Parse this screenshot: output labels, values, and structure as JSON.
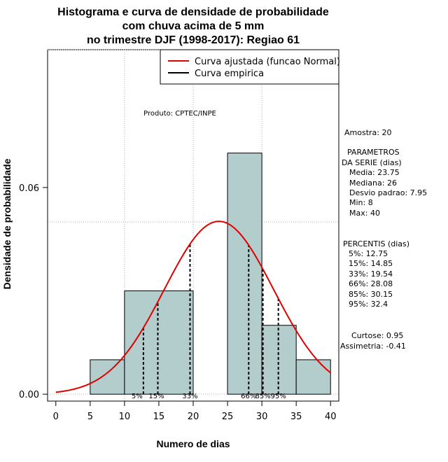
{
  "chart_data": {
    "type": "bar",
    "title_lines": [
      "Histograma e curva de densidade de probabilidade",
      "com chuva acima de 5 mm",
      "no trimestre DJF (1998-2017): Regiao 61"
    ],
    "xlabel": "Numero de dias",
    "ylabel": "Densidade de probabilidade",
    "xlim": [
      -1.2,
      41.2
    ],
    "ylim": [
      -0.002,
      0.1
    ],
    "x_ticks": [
      0,
      5,
      10,
      15,
      20,
      25,
      30,
      35,
      40
    ],
    "x_tick_labels": [
      "0",
      "5",
      "10",
      "15",
      "20",
      "25",
      "30",
      "35",
      "40"
    ],
    "y_ticks": [
      0,
      0.06
    ],
    "y_tick_labels": [
      "0.00",
      "0.06"
    ],
    "grid_x": [
      10,
      20,
      30
    ],
    "grid_y": [
      0.05,
      0.1
    ],
    "bins": [
      {
        "from": 5,
        "to": 10,
        "density": 0.01
      },
      {
        "from": 10,
        "to": 20,
        "density": 0.03
      },
      {
        "from": 20,
        "to": 25,
        "density": 0
      },
      {
        "from": 25,
        "to": 30,
        "density": 0.07
      },
      {
        "from": 30,
        "to": 35,
        "density": 0.02
      },
      {
        "from": 35,
        "to": 40,
        "density": 0.01
      }
    ],
    "normal_fit": {
      "mean": 23.75,
      "sd": 7.95,
      "range": [
        0,
        40
      ]
    },
    "percentile_markers": [
      {
        "label": "5%",
        "x": 12.75
      },
      {
        "label": "15%",
        "x": 14.85
      },
      {
        "label": "33%",
        "x": 19.54
      },
      {
        "label": "66%",
        "x": 28.08
      },
      {
        "label": "85%",
        "x": 30.15
      },
      {
        "label": "95%",
        "x": 32.4
      }
    ],
    "legend": {
      "position": "top-right",
      "entries": [
        {
          "label": "Curva ajustada (funcao Normal)",
          "color": "#e00000"
        },
        {
          "label": "Curva empirica",
          "color": "#000000"
        }
      ]
    },
    "annotation": "Produto: CPTEC/INPE",
    "colors": {
      "bar_fill": "#b3cccc",
      "curve": "#e00000",
      "grid": "#b0b0b0"
    }
  },
  "stats": {
    "amostra": "Amostra: 20",
    "param_header_1": "PARAMETROS",
    "param_header_2": "DA SERIE (dias)",
    "media": "Media: 23.75",
    "mediana": "Mediana: 26",
    "desvio": "Desvio padrao: 7.95",
    "min": "Min: 8",
    "max": "Max: 40",
    "perc_header": "PERCENTIS (dias)",
    "p5": "5%: 12.75",
    "p15": "15%: 14.85",
    "p33": "33%: 19.54",
    "p66": "66%: 28.08",
    "p85": "85%: 30.15",
    "p95": "95%: 32.4",
    "curtose": "Curtose: 0.95",
    "assimetria": "Assimetria: -0.41"
  }
}
